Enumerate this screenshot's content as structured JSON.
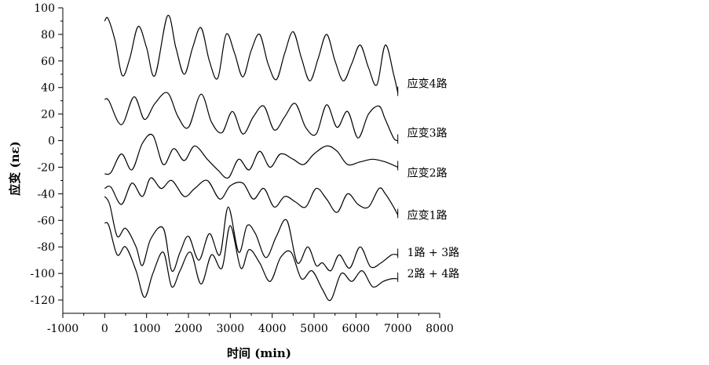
{
  "chart_data": {
    "type": "line",
    "xlabel": "时间 (min)",
    "ylabel": "应变 (nε)",
    "xlim": [
      -1000,
      8000
    ],
    "ylim": [
      -130,
      100
    ],
    "x_ticks": [
      -1000,
      0,
      1000,
      2000,
      3000,
      4000,
      5000,
      6000,
      7000,
      8000
    ],
    "y_ticks": [
      100,
      80,
      60,
      40,
      20,
      0,
      -20,
      -40,
      -60,
      -80,
      -100,
      -120
    ],
    "y_tick_labels": [
      "100",
      "80",
      "60",
      "40",
      "20",
      "0",
      "-20",
      "-40",
      "-60",
      "-80",
      "-100",
      "-120"
    ],
    "x_tick_labels": [
      "-1000",
      "0",
      "1000",
      "2000",
      "3000",
      "4000",
      "5000",
      "6000",
      "7000",
      "8000"
    ],
    "grid": false,
    "legend": "labels at right end of each trace",
    "series": [
      {
        "name": "应变4路",
        "x": [
          0,
          80,
          250,
          420,
          600,
          800,
          1000,
          1200,
          1500,
          1700,
          1900,
          2100,
          2300,
          2500,
          2700,
          2900,
          3100,
          3300,
          3500,
          3700,
          3900,
          4100,
          4300,
          4500,
          4700,
          4900,
          5100,
          5300,
          5500,
          5700,
          5900,
          6100,
          6300,
          6500,
          6700,
          6900,
          7000
        ],
        "y": [
          90,
          92,
          75,
          49,
          62,
          86,
          70,
          49,
          94,
          70,
          50,
          70,
          85,
          60,
          47,
          80,
          66,
          48,
          68,
          80,
          58,
          46,
          66,
          82,
          62,
          45,
          62,
          80,
          60,
          45,
          58,
          72,
          55,
          42,
          72,
          50,
          36
        ]
      },
      {
        "name": "应变3路",
        "x": [
          0,
          100,
          400,
          700,
          950,
          1200,
          1500,
          1750,
          2000,
          2300,
          2550,
          2800,
          3050,
          3300,
          3550,
          3800,
          4050,
          4300,
          4550,
          4800,
          5050,
          5300,
          5550,
          5800,
          6050,
          6300,
          6550,
          6700,
          6900,
          7000
        ],
        "y": [
          31,
          30,
          12,
          33,
          16,
          28,
          36,
          18,
          10,
          35,
          14,
          6,
          22,
          5,
          18,
          26,
          8,
          18,
          28,
          10,
          5,
          27,
          10,
          22,
          2,
          20,
          26,
          16,
          2,
          0
        ]
      },
      {
        "name": "应变2路",
        "x": [
          0,
          150,
          400,
          650,
          900,
          1150,
          1400,
          1650,
          1900,
          2150,
          2450,
          2700,
          2950,
          3200,
          3450,
          3700,
          3950,
          4200,
          4500,
          4750,
          5000,
          5300,
          5550,
          5800,
          6100,
          6400,
          6700,
          7000
        ],
        "y": [
          -25,
          -24,
          -10,
          -22,
          -2,
          4,
          -18,
          -6,
          -15,
          -4,
          -14,
          -22,
          -28,
          -14,
          -22,
          -8,
          -20,
          -10,
          -14,
          -18,
          -10,
          -4,
          -8,
          -18,
          -16,
          -14,
          -16,
          -20
        ]
      },
      {
        "name": "应变1路",
        "x": [
          0,
          150,
          400,
          650,
          900,
          1100,
          1350,
          1600,
          1900,
          2150,
          2450,
          2750,
          3000,
          3300,
          3550,
          3800,
          4050,
          4300,
          4550,
          4800,
          5050,
          5300,
          5550,
          5800,
          6050,
          6300,
          6550,
          6700,
          6900,
          7000
        ],
        "y": [
          -36,
          -35,
          -48,
          -32,
          -42,
          -28,
          -36,
          -30,
          -42,
          -36,
          -30,
          -44,
          -34,
          -32,
          -44,
          -36,
          -50,
          -42,
          -46,
          -50,
          -36,
          -44,
          -54,
          -40,
          -48,
          -50,
          -36,
          -40,
          -50,
          -56
        ]
      },
      {
        "name": "1路 + 3路",
        "x": [
          0,
          120,
          300,
          500,
          750,
          900,
          1100,
          1400,
          1600,
          1800,
          2000,
          2250,
          2500,
          2750,
          2950,
          3200,
          3400,
          3600,
          3850,
          4100,
          4350,
          4600,
          4850,
          5050,
          5200,
          5400,
          5600,
          5850,
          6100,
          6350,
          6600,
          6850,
          7000
        ],
        "y": [
          -42,
          -48,
          -72,
          -66,
          -80,
          -94,
          -74,
          -66,
          -98,
          -84,
          -72,
          -90,
          -70,
          -86,
          -50,
          -84,
          -64,
          -70,
          -88,
          -72,
          -60,
          -92,
          -80,
          -94,
          -92,
          -98,
          -86,
          -96,
          -80,
          -95,
          -92,
          -86,
          -86
        ]
      },
      {
        "name": "2路 + 4路",
        "x": [
          0,
          100,
          300,
          500,
          750,
          950,
          1150,
          1400,
          1600,
          1800,
          2050,
          2300,
          2550,
          2800,
          3000,
          3250,
          3450,
          3700,
          3950,
          4200,
          4450,
          4700,
          4950,
          5200,
          5400,
          5650,
          5900,
          6150,
          6400,
          6650,
          6850,
          7000
        ],
        "y": [
          -62,
          -64,
          -86,
          -80,
          -98,
          -118,
          -100,
          -84,
          -110,
          -98,
          -84,
          -108,
          -86,
          -96,
          -64,
          -96,
          -82,
          -92,
          -106,
          -88,
          -84,
          -104,
          -98,
          -112,
          -120,
          -100,
          -106,
          -98,
          -110,
          -106,
          -104,
          -104
        ]
      }
    ],
    "label_positions": [
      {
        "name": "应变4路",
        "x": 7000,
        "y": 43
      },
      {
        "name": "应变3路",
        "x": 7000,
        "y": 6
      },
      {
        "name": "应变2路",
        "x": 7000,
        "y": -24
      },
      {
        "name": "应变1路",
        "x": 7000,
        "y": -56
      },
      {
        "name": "1路 + 3路",
        "x": 7000,
        "y": -84
      },
      {
        "name": "2路 + 4路",
        "x": 7000,
        "y": -100
      }
    ]
  }
}
